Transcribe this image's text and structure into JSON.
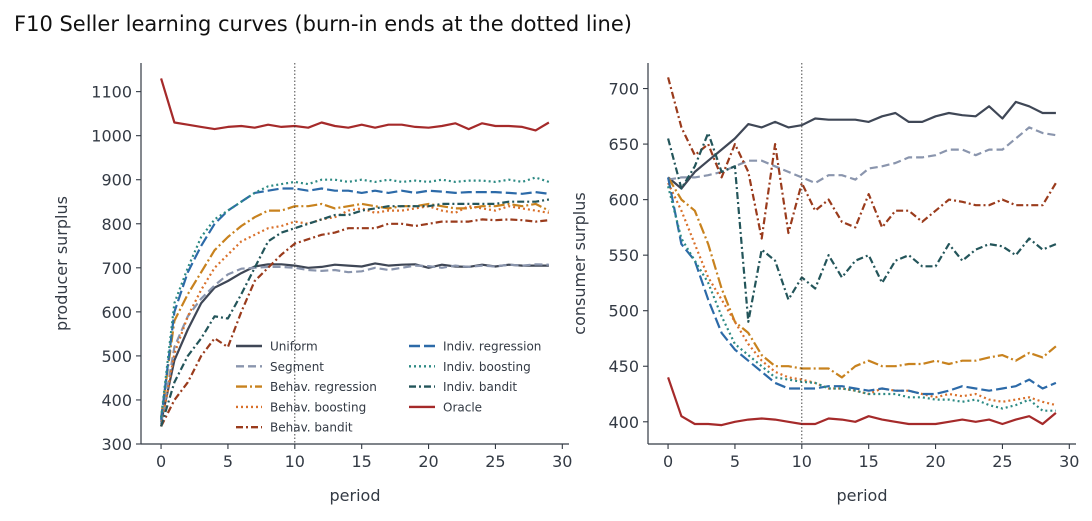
{
  "figure": {
    "title": "F10  Seller learning curves (burn-in ends at the dotted line)"
  },
  "chart_data": [
    {
      "type": "line",
      "xlabel": "period",
      "ylabel": "producer surplus",
      "xlim": [
        -1.5,
        30.5
      ],
      "ylim": [
        300,
        1165
      ],
      "xticks": [
        0,
        5,
        10,
        15,
        20,
        25,
        30
      ],
      "yticks": [
        300,
        400,
        500,
        600,
        700,
        800,
        900,
        1000,
        1100
      ],
      "burn_in_end": 10,
      "grid": false,
      "legend": "lower-right",
      "x": [
        0,
        1,
        2,
        3,
        4,
        5,
        6,
        7,
        8,
        9,
        10,
        11,
        12,
        13,
        14,
        15,
        16,
        17,
        18,
        19,
        20,
        21,
        22,
        23,
        24,
        25,
        26,
        27,
        28,
        29
      ],
      "series": [
        {
          "name": "Uniform",
          "color": "#3f4756",
          "dash": "solid",
          "values": [
            350,
            490,
            560,
            620,
            655,
            670,
            688,
            703,
            708,
            708,
            705,
            700,
            702,
            707,
            705,
            703,
            710,
            705,
            707,
            708,
            700,
            707,
            703,
            702,
            707,
            703,
            707,
            705,
            705,
            705
          ]
        },
        {
          "name": "Segment",
          "color": "#8a95ad",
          "dash": "dashed",
          "values": [
            345,
            520,
            590,
            630,
            660,
            685,
            698,
            700,
            702,
            702,
            700,
            695,
            693,
            695,
            690,
            692,
            700,
            695,
            700,
            705,
            704,
            700,
            705,
            702,
            705,
            703,
            707,
            705,
            708,
            707
          ]
        },
        {
          "name": "Behav. regression",
          "color": "#c8821e",
          "dash": "dashdot-long",
          "values": [
            360,
            580,
            640,
            690,
            740,
            770,
            795,
            815,
            830,
            830,
            840,
            840,
            845,
            835,
            840,
            845,
            840,
            835,
            840,
            840,
            845,
            840,
            835,
            835,
            840,
            840,
            845,
            840,
            845,
            830
          ]
        },
        {
          "name": "Behav. boosting",
          "color": "#d9702a",
          "dash": "dotted",
          "values": [
            340,
            505,
            590,
            650,
            700,
            730,
            760,
            775,
            790,
            795,
            805,
            800,
            810,
            815,
            830,
            835,
            825,
            830,
            830,
            835,
            840,
            830,
            825,
            840,
            835,
            830,
            840,
            835,
            830,
            825
          ]
        },
        {
          "name": "Behav. bandit",
          "color": "#9a3b1c",
          "dash": "dashdot",
          "values": [
            340,
            400,
            440,
            500,
            540,
            520,
            600,
            670,
            700,
            730,
            755,
            765,
            775,
            780,
            790,
            790,
            790,
            800,
            800,
            795,
            800,
            805,
            805,
            805,
            810,
            808,
            810,
            808,
            805,
            808
          ]
        },
        {
          "name": "Indiv. regression",
          "color": "#2c6aa8",
          "dash": "dashed-long",
          "values": [
            355,
            600,
            690,
            750,
            800,
            830,
            850,
            870,
            875,
            880,
            880,
            875,
            880,
            875,
            875,
            870,
            875,
            870,
            875,
            870,
            875,
            873,
            870,
            872,
            872,
            872,
            870,
            868,
            872,
            868
          ]
        },
        {
          "name": "Indiv. boosting",
          "color": "#2d8a84",
          "dash": "dotted",
          "values": [
            360,
            620,
            700,
            770,
            810,
            830,
            850,
            870,
            885,
            890,
            895,
            890,
            900,
            900,
            895,
            900,
            895,
            900,
            895,
            898,
            895,
            900,
            895,
            898,
            898,
            895,
            900,
            895,
            905,
            895
          ]
        },
        {
          "name": "Indiv. bandit",
          "color": "#23555a",
          "dash": "dashdot",
          "values": [
            340,
            440,
            500,
            540,
            590,
            585,
            640,
            700,
            760,
            780,
            790,
            800,
            810,
            820,
            820,
            830,
            835,
            840,
            840,
            840,
            840,
            845,
            845,
            845,
            845,
            845,
            850,
            850,
            850,
            855
          ]
        },
        {
          "name": "Oracle",
          "color": "#a52a2a",
          "dash": "solid",
          "values": [
            1130,
            1030,
            1025,
            1020,
            1015,
            1020,
            1022,
            1018,
            1025,
            1020,
            1022,
            1018,
            1030,
            1022,
            1018,
            1025,
            1018,
            1025,
            1025,
            1020,
            1018,
            1022,
            1028,
            1015,
            1028,
            1022,
            1022,
            1020,
            1012,
            1030
          ]
        }
      ]
    },
    {
      "type": "line",
      "xlabel": "period",
      "ylabel": "consumer surplus",
      "xlim": [
        -1.5,
        30.5
      ],
      "ylim": [
        380,
        723
      ],
      "xticks": [
        0,
        5,
        10,
        15,
        20,
        25,
        30
      ],
      "yticks": [
        400,
        450,
        500,
        550,
        600,
        650,
        700
      ],
      "burn_in_end": 10,
      "grid": false,
      "x": [
        0,
        1,
        2,
        3,
        4,
        5,
        6,
        7,
        8,
        9,
        10,
        11,
        12,
        13,
        14,
        15,
        16,
        17,
        18,
        19,
        20,
        21,
        22,
        23,
        24,
        25,
        26,
        27,
        28,
        29
      ],
      "series": [
        {
          "name": "Uniform",
          "color": "#3f4756",
          "dash": "solid",
          "values": [
            620,
            610,
            625,
            635,
            645,
            655,
            668,
            665,
            670,
            665,
            667,
            673,
            672,
            672,
            672,
            670,
            675,
            678,
            670,
            670,
            675,
            678,
            676,
            675,
            684,
            673,
            688,
            684,
            678,
            678
          ]
        },
        {
          "name": "Segment",
          "color": "#8a95ad",
          "dash": "dashed",
          "values": [
            618,
            620,
            620,
            622,
            625,
            630,
            635,
            635,
            630,
            625,
            620,
            615,
            622,
            622,
            618,
            628,
            630,
            633,
            638,
            638,
            640,
            645,
            645,
            640,
            645,
            645,
            655,
            665,
            660,
            658
          ]
        },
        {
          "name": "Behav. regression",
          "color": "#c8821e",
          "dash": "dashdot-long",
          "values": [
            620,
            600,
            590,
            560,
            520,
            490,
            480,
            460,
            450,
            450,
            448,
            448,
            448,
            440,
            450,
            455,
            450,
            450,
            452,
            452,
            455,
            452,
            455,
            455,
            458,
            460,
            455,
            462,
            458,
            468
          ]
        },
        {
          "name": "Behav. boosting",
          "color": "#d9702a",
          "dash": "dotted",
          "values": [
            615,
            590,
            560,
            530,
            510,
            490,
            470,
            455,
            445,
            440,
            438,
            435,
            430,
            430,
            428,
            425,
            430,
            428,
            428,
            425,
            422,
            425,
            423,
            425,
            420,
            418,
            420,
            422,
            418,
            415
          ]
        },
        {
          "name": "Behav. bandit",
          "color": "#9a3b1c",
          "dash": "dashdot",
          "values": [
            710,
            665,
            640,
            650,
            620,
            650,
            625,
            565,
            650,
            570,
            615,
            590,
            600,
            580,
            575,
            605,
            575,
            590,
            590,
            580,
            590,
            600,
            598,
            595,
            595,
            600,
            595,
            595,
            595,
            615
          ]
        },
        {
          "name": "Indiv. regression",
          "color": "#2c6aa8",
          "dash": "dashed-long",
          "values": [
            620,
            560,
            545,
            510,
            480,
            465,
            455,
            445,
            435,
            430,
            430,
            430,
            432,
            432,
            430,
            428,
            430,
            428,
            428,
            425,
            425,
            428,
            432,
            430,
            428,
            430,
            432,
            438,
            430,
            435
          ]
        },
        {
          "name": "Indiv. boosting",
          "color": "#2d8a84",
          "dash": "dotted",
          "values": [
            612,
            565,
            545,
            525,
            495,
            470,
            460,
            450,
            440,
            438,
            436,
            435,
            430,
            430,
            428,
            425,
            425,
            425,
            422,
            422,
            420,
            420,
            418,
            420,
            415,
            412,
            415,
            420,
            410,
            410
          ]
        },
        {
          "name": "Indiv. bandit",
          "color": "#23555a",
          "dash": "dashdot",
          "values": [
            655,
            610,
            630,
            660,
            625,
            630,
            490,
            555,
            545,
            510,
            530,
            520,
            550,
            530,
            545,
            550,
            525,
            545,
            550,
            540,
            540,
            560,
            545,
            555,
            560,
            558,
            550,
            565,
            555,
            560
          ]
        },
        {
          "name": "Oracle",
          "color": "#a52a2a",
          "dash": "solid",
          "values": [
            440,
            405,
            398,
            398,
            397,
            400,
            402,
            403,
            402,
            400,
            398,
            398,
            403,
            402,
            400,
            405,
            402,
            400,
            398,
            398,
            398,
            400,
            402,
            400,
            402,
            398,
            402,
            405,
            398,
            408
          ]
        }
      ]
    }
  ]
}
